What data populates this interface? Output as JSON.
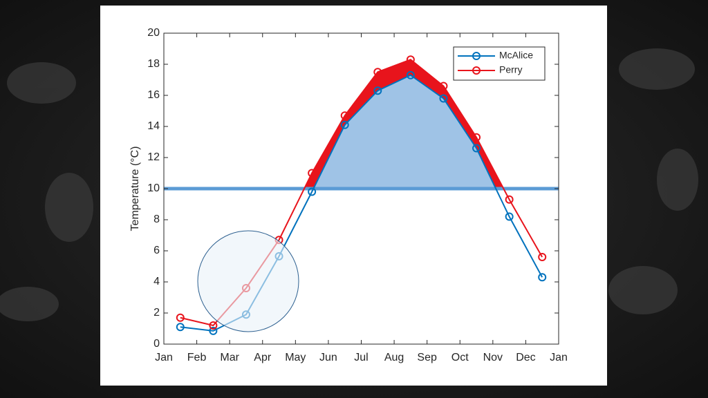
{
  "chart_data": {
    "type": "line",
    "ylabel": "Temperature (°C)",
    "x": [
      0.5,
      1.5,
      2.5,
      3.5,
      4.5,
      5.5,
      6.5,
      7.5,
      8.5,
      9.5,
      10.5,
      11.5
    ],
    "series": [
      {
        "name": "McAlice",
        "color": "#0072bd",
        "values": [
          1.1,
          0.85,
          1.9,
          5.65,
          9.8,
          14.1,
          16.3,
          17.3,
          15.8,
          12.6,
          8.2,
          4.3
        ]
      },
      {
        "name": "Perry",
        "color": "#e8141c",
        "values": [
          1.7,
          1.2,
          3.6,
          6.7,
          11.0,
          14.7,
          17.5,
          18.3,
          16.6,
          13.3,
          9.3,
          5.6
        ]
      }
    ],
    "threshold": 10,
    "xlim": [
      0,
      12
    ],
    "xticks": [
      {
        "value": 0,
        "label": "Jan"
      },
      {
        "value": 1,
        "label": "Feb"
      },
      {
        "value": 2,
        "label": "Mar"
      },
      {
        "value": 3,
        "label": "Apr"
      },
      {
        "value": 4,
        "label": "May"
      },
      {
        "value": 5,
        "label": "Jun"
      },
      {
        "value": 6,
        "label": "Jul"
      },
      {
        "value": 7,
        "label": "Aug"
      },
      {
        "value": 8,
        "label": "Sep"
      },
      {
        "value": 9,
        "label": "Oct"
      },
      {
        "value": 10,
        "label": "Nov"
      },
      {
        "value": 11,
        "label": "Dec"
      },
      {
        "value": 12,
        "label": "Jan"
      }
    ],
    "ylim": [
      0,
      20
    ],
    "yticks": [
      0,
      2,
      4,
      6,
      8,
      10,
      12,
      14,
      16,
      18,
      20
    ],
    "legend": "upper right"
  }
}
